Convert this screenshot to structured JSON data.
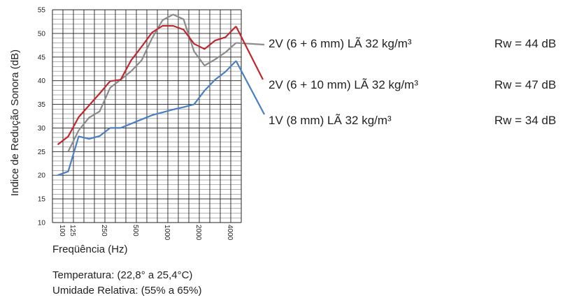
{
  "chart_data": {
    "type": "line",
    "title": "",
    "xlabel": "Freqüência (Hz)",
    "ylabel": "Indice de Redução Sonora (dB)",
    "ylim": [
      10,
      55
    ],
    "yticks": [
      10,
      15,
      20,
      25,
      30,
      35,
      40,
      45,
      50,
      55
    ],
    "x": [
      100,
      125,
      160,
      200,
      250,
      315,
      400,
      500,
      630,
      800,
      1000,
      1250,
      1600,
      2000,
      2500,
      3150,
      4000,
      5000
    ],
    "xtick_labels": [
      "100",
      "125",
      "250",
      "500",
      "1000",
      "2000",
      "4000"
    ],
    "grid": true,
    "series": [
      {
        "name": "2V (6 + 6 mm) LÃ 32 kg/m³",
        "rw": "Rw = 44 dB",
        "color": "#8a8a8a",
        "values": [
          null,
          25.0,
          29.5,
          32.2,
          33.5,
          38.5,
          40.2,
          42.0,
          44.3,
          49.0,
          52.8,
          54.0,
          53.0,
          46.2,
          43.2,
          44.5,
          46.0,
          48.0
        ]
      },
      {
        "name": "2V (6 + 10 mm) LÃ 32 kg/m³",
        "rw": "Rw = 47 dB",
        "color": "#c0272d",
        "values": [
          26.5,
          28.2,
          32.3,
          34.8,
          37.3,
          39.9,
          40.2,
          44.3,
          47.2,
          50.2,
          51.6,
          51.6,
          50.8,
          47.8,
          46.7,
          48.5,
          49.2,
          51.5
        ]
      },
      {
        "name": "1V  (8 mm) LÃ 32 kg/m³",
        "rw": "Rw = 34 dB",
        "color": "#4a7fc1",
        "values": [
          20.0,
          20.8,
          28.2,
          27.7,
          28.3,
          30.0,
          30.0,
          30.9,
          31.8,
          32.7,
          33.3,
          33.9,
          34.4,
          35.0,
          37.9,
          40.2,
          41.9,
          44.2
        ]
      }
    ]
  },
  "notes": {
    "temperature": "Temperatura: (22,8° a  25,4°C)",
    "humidity": "Umidade Relativa: (55% a 65%)"
  }
}
